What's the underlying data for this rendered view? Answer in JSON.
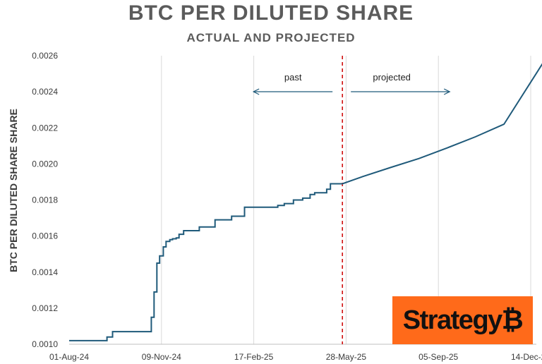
{
  "header": {
    "title": "BTC PER DILUTED SHARE",
    "subtitle": "ACTUAL AND PROJECTED"
  },
  "logo": {
    "text": "Strategy",
    "symbol": "₿",
    "background": "#ff6a1a"
  },
  "chart_data": {
    "type": "line",
    "title": "BTC PER DILUTED SHARE",
    "subtitle": "ACTUAL AND PROJECTED",
    "ylabel": "BTC PER DILUTED SHARE SHARE",
    "xlabel": "",
    "ylim": [
      0.001,
      0.0026
    ],
    "xlim": [
      "2024-08-01",
      "2025-12-31"
    ],
    "ytick_labels": [
      "0.0010",
      "0.0012",
      "0.0014",
      "0.0016",
      "0.0018",
      "0.0020",
      "0.0022",
      "0.0024",
      "0.0026"
    ],
    "xtick_labels": [
      "01-Aug-24",
      "09-Nov-24",
      "17-Feb-25",
      "28-May-25",
      "05-Sep-25",
      "14-Dec-25"
    ],
    "xtick_dates": [
      "2024-08-01",
      "2024-11-09",
      "2025-02-17",
      "2025-05-28",
      "2025-09-05",
      "2025-12-14"
    ],
    "grid": "vertical",
    "line_color": "#1f5a7a",
    "divider": {
      "date": "2025-05-24",
      "color": "#cc0000",
      "style": "dashed"
    },
    "annotations": {
      "past": "past",
      "projected": "projected"
    },
    "series": [
      {
        "x": [
          "2024-08-01",
          "2024-09-11",
          "2024-09-11",
          "2024-09-17",
          "2024-09-17",
          "2024-10-29",
          "2024-10-29",
          "2024-11-01",
          "2024-11-01",
          "2024-11-04",
          "2024-11-04",
          "2024-11-07",
          "2024-11-07",
          "2024-11-11",
          "2024-11-11",
          "2024-11-14",
          "2024-11-14",
          "2024-11-18",
          "2024-11-18",
          "2024-11-21",
          "2024-11-21",
          "2024-11-25",
          "2024-11-25",
          "2024-11-28",
          "2024-11-28",
          "2024-12-03",
          "2024-12-03",
          "2024-12-16",
          "2024-12-16",
          "2024-12-20",
          "2024-12-20",
          "2024-12-24",
          "2024-12-24",
          "2025-01-06",
          "2025-01-06",
          "2025-01-11",
          "2025-01-11",
          "2025-01-24",
          "2025-01-24",
          "2025-02-07",
          "2025-02-07",
          "2025-03-15",
          "2025-03-15",
          "2025-03-22",
          "2025-03-22",
          "2025-04-01",
          "2025-04-01",
          "2025-04-11",
          "2025-04-11",
          "2025-04-19",
          "2025-04-19",
          "2025-04-24",
          "2025-04-24",
          "2025-05-07",
          "2025-05-07",
          "2025-05-11",
          "2025-05-11",
          "2025-05-24",
          "2025-06-15",
          "2025-07-15",
          "2025-08-15",
          "2025-09-15",
          "2025-10-15",
          "2025-11-15",
          "2025-12-31"
        ],
        "y": [
          0.00102,
          0.00102,
          0.00104,
          0.00104,
          0.00107,
          0.00107,
          0.00115,
          0.00115,
          0.00129,
          0.00129,
          0.00145,
          0.00145,
          0.00149,
          0.00149,
          0.00154,
          0.00154,
          0.00157,
          0.00157,
          0.00158,
          0.00158,
          0.001585,
          0.001585,
          0.00159,
          0.00159,
          0.00161,
          0.00161,
          0.00163,
          0.00163,
          0.00163,
          0.00163,
          0.00165,
          0.00165,
          0.00165,
          0.00165,
          0.00169,
          0.00169,
          0.00169,
          0.00169,
          0.00171,
          0.00171,
          0.00176,
          0.00176,
          0.00177,
          0.00177,
          0.00178,
          0.00178,
          0.0018,
          0.0018,
          0.00181,
          0.00181,
          0.00183,
          0.00183,
          0.00184,
          0.00184,
          0.00186,
          0.00186,
          0.00189,
          0.00189,
          0.00193,
          0.00198,
          0.00203,
          0.00209,
          0.00215,
          0.00222,
          0.00259
        ]
      }
    ]
  }
}
